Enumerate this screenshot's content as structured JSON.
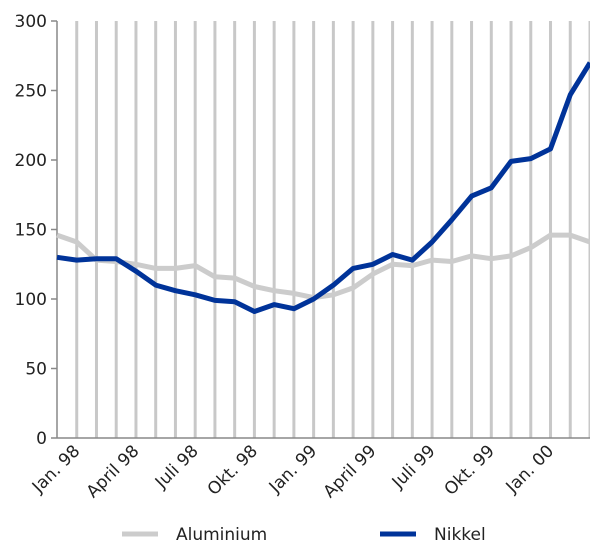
{
  "chart_data": {
    "type": "line",
    "categories": [
      null,
      "Jan. 98",
      null,
      null,
      "April 98",
      null,
      null,
      "Juli 98",
      null,
      null,
      "Okt. 98",
      null,
      null,
      "Jan. 99",
      null,
      null,
      "April 99",
      null,
      null,
      "Juli 99",
      null,
      null,
      "Okt. 99",
      null,
      null,
      "Jan. 00",
      null,
      null
    ],
    "series": [
      {
        "name": "Aluminium",
        "color": "#cccccc",
        "values": [
          146,
          141,
          128,
          127,
          125,
          122,
          122,
          124,
          116,
          115,
          109,
          106,
          104,
          101,
          103,
          108,
          118,
          125,
          124,
          128,
          127,
          131,
          129,
          131,
          137,
          146,
          146,
          141
        ]
      },
      {
        "name": "Nikkel",
        "color": "#003399",
        "values": [
          130,
          128,
          129,
          129,
          120,
          110,
          106,
          103,
          99,
          98,
          91,
          96,
          93,
          100,
          110,
          122,
          125,
          132,
          128,
          141,
          157,
          174,
          180,
          199,
          201,
          208,
          247,
          270
        ]
      }
    ],
    "ylim": [
      0,
      300
    ],
    "yticks": [
      0,
      50,
      100,
      150,
      200,
      250,
      300
    ],
    "grid": true
  }
}
